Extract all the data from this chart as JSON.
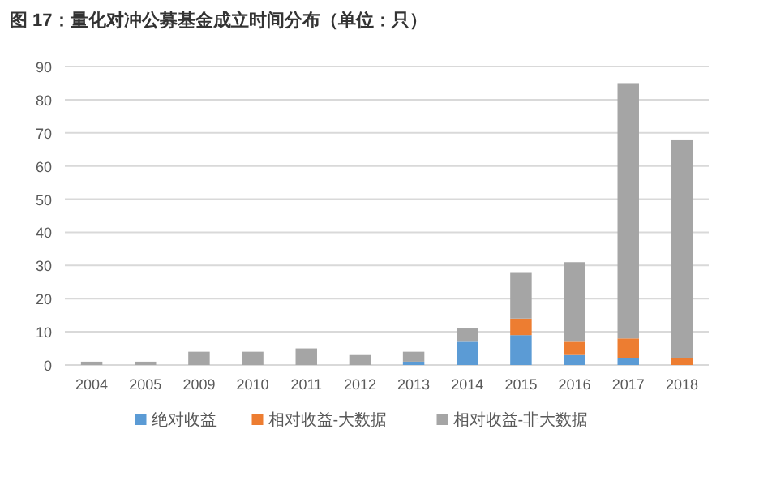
{
  "chart_data": {
    "type": "bar",
    "title": "图 17：量化对冲公募基金成立时间分布（单位：只）",
    "categories": [
      "2004",
      "2005",
      "2009",
      "2010",
      "2011",
      "2012",
      "2013",
      "2014",
      "2015",
      "2016",
      "2017",
      "2018"
    ],
    "stacked": true,
    "series": [
      {
        "name": "绝对收益",
        "color": "#5b9bd5",
        "values": [
          0,
          0,
          0,
          0,
          0,
          0,
          1,
          7,
          9,
          3,
          2,
          0
        ]
      },
      {
        "name": "相对收益-大数据",
        "color": "#ed7d31",
        "values": [
          0,
          0,
          0,
          0,
          0,
          0,
          0,
          0,
          5,
          4,
          6,
          2
        ]
      },
      {
        "name": "相对收益-非大数据",
        "color": "#a5a5a5",
        "values": [
          1,
          1,
          4,
          4,
          5,
          3,
          3,
          4,
          14,
          24,
          77,
          66
        ]
      }
    ],
    "ylim": [
      0,
      90
    ],
    "yticks": [
      0,
      10,
      20,
      30,
      40,
      50,
      60,
      70,
      80,
      90
    ],
    "grid": "y",
    "legend": "bottom"
  }
}
